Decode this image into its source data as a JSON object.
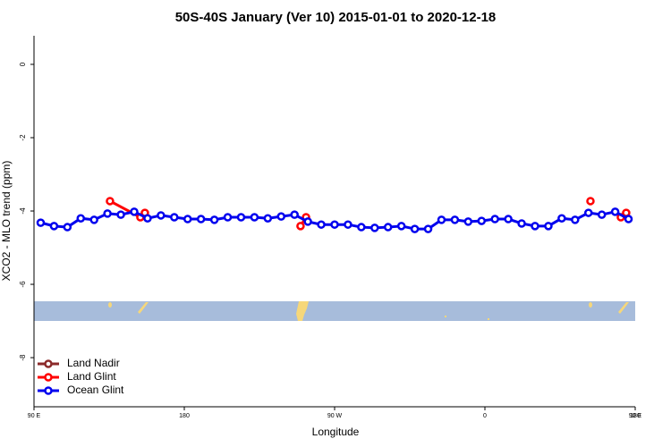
{
  "chart_data": {
    "type": "line",
    "title": "50S-40S January (Ver 10)   2015-01-01 to 2020-12-18",
    "x_label": "Longitude",
    "y_label": "XCO2 - MLO trend (ppm)",
    "xlim": [
      90,
      450
    ],
    "xticks": [
      {
        "value": 90,
        "label": "90 E"
      },
      180,
      {
        "value": 270,
        "label": "90 W"
      },
      {
        "value": 360,
        "label": "0"
      },
      {
        "value": 450,
        "label": "90 E"
      },
      {
        "value": 540,
        "label": "180"
      }
    ],
    "ylim": [
      -9.34,
      0.78
    ],
    "yticks": [
      0,
      -2,
      -4,
      -6,
      -8
    ],
    "legend": "bottom-left",
    "series": [
      {
        "name": "Land Nadir",
        "color": "#8b2a2a",
        "x": [],
        "values": []
      },
      {
        "name": "Land Glint",
        "color": "#ff0000",
        "x": [
          135.5,
          153.7,
          156.4,
          null,
          249.6,
          252.9,
          null,
          423.2,
          null,
          441.4,
          444.6
        ],
        "values": [
          -3.73,
          -4.17,
          -4.05,
          null,
          -4.41,
          -4.17,
          null,
          -3.73,
          null,
          -4.17,
          -4.05
        ]
      },
      {
        "name": "Ocean Glint",
        "color": "#0000ee",
        "x": [
          94,
          102,
          110,
          118,
          126,
          134,
          142,
          150,
          158,
          166,
          174,
          182,
          190,
          198,
          206,
          214,
          222,
          230,
          238,
          246,
          254,
          262,
          270,
          278,
          286,
          294,
          302,
          310,
          318,
          326,
          334,
          342,
          350,
          358,
          366,
          374,
          382,
          390,
          398,
          406,
          414,
          422,
          430,
          438,
          446
        ],
        "values": [
          -4.32,
          -4.41,
          -4.44,
          -4.2,
          -4.24,
          -4.07,
          -4.1,
          -4.02,
          -4.2,
          -4.12,
          -4.17,
          -4.22,
          -4.22,
          -4.24,
          -4.17,
          -4.17,
          -4.17,
          -4.2,
          -4.15,
          -4.1,
          -4.29,
          -4.37,
          -4.37,
          -4.37,
          -4.44,
          -4.46,
          -4.44,
          -4.41,
          -4.49,
          -4.49,
          -4.24,
          -4.24,
          -4.29,
          -4.27,
          -4.22,
          -4.22,
          -4.34,
          -4.41,
          -4.41,
          -4.2,
          -4.24,
          -4.05,
          -4.1,
          -4.02,
          -4.22
        ]
      }
    ]
  }
}
